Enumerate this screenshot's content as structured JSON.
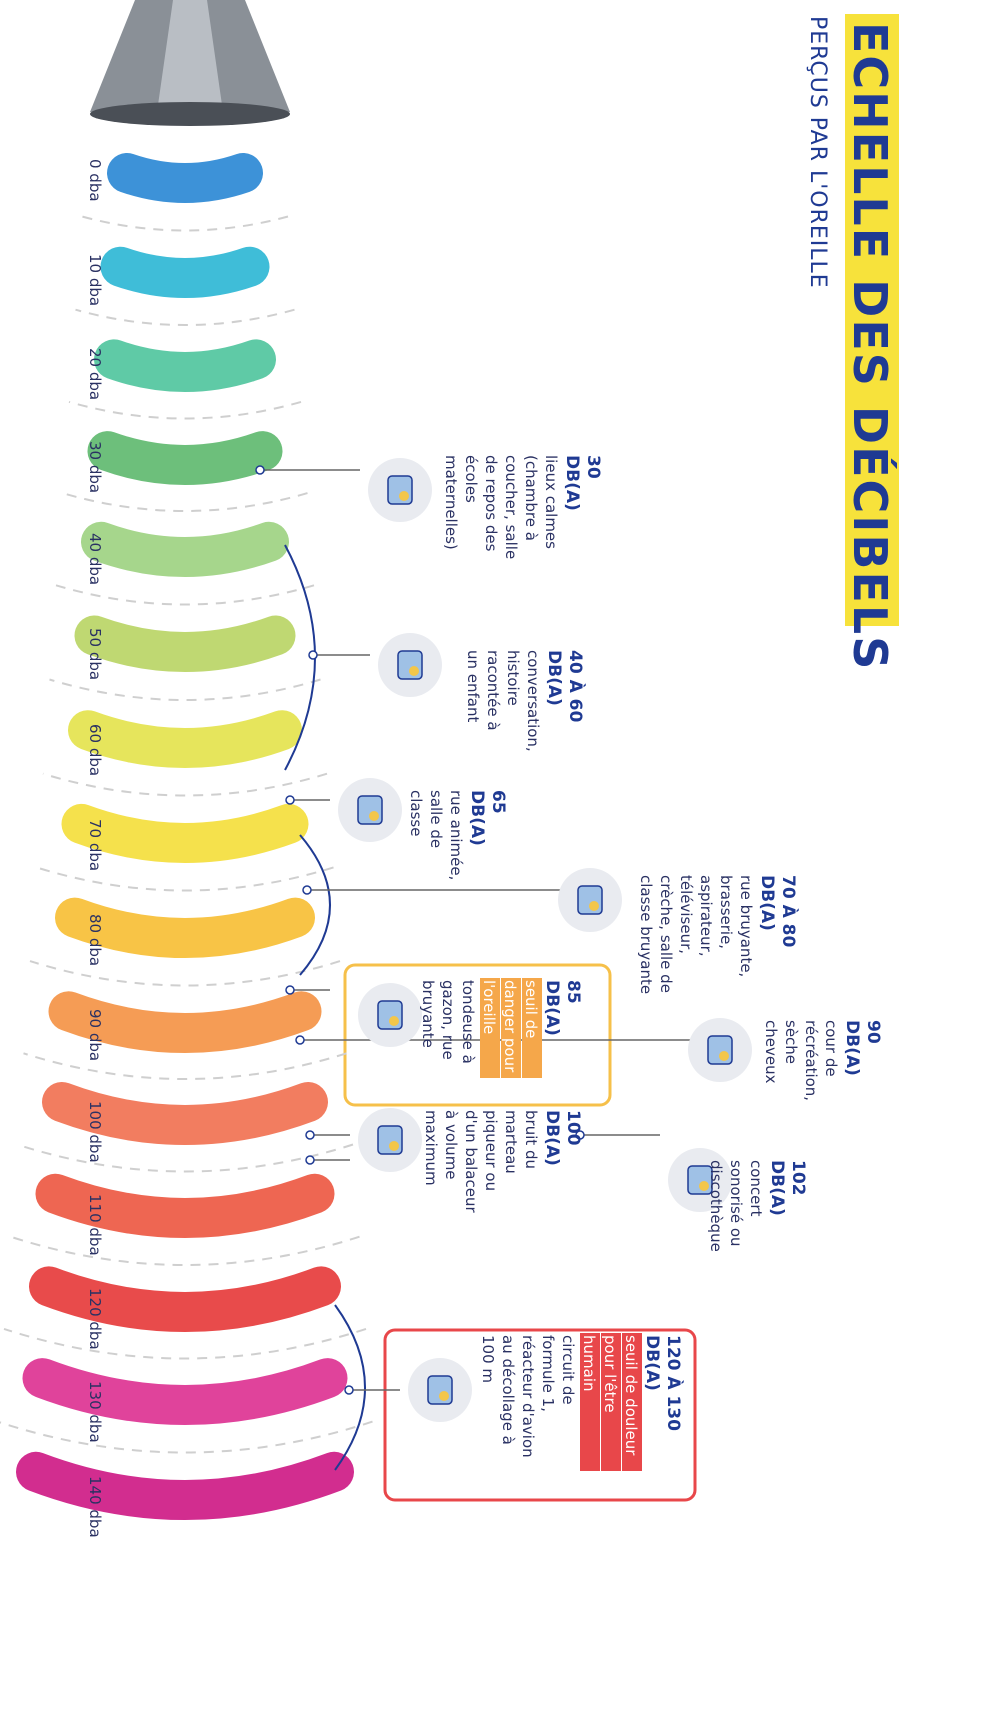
{
  "header": {
    "title": "ECHELLE DES DÉCIBELS",
    "subtitle": "PERÇUS PAR L'OREILLE"
  },
  "scale": [
    {
      "label": "0 dba",
      "color": "#3d92d8"
    },
    {
      "label": "10 dba",
      "color": "#3fbdd8"
    },
    {
      "label": "20 dba",
      "color": "#5fcaa6"
    },
    {
      "label": "30 dba",
      "color": "#6dbf7b"
    },
    {
      "label": "40 dba",
      "color": "#a6d68c"
    },
    {
      "label": "50 dba",
      "color": "#bfd872"
    },
    {
      "label": "60 dba",
      "color": "#e6e55c"
    },
    {
      "label": "70 dba",
      "color": "#f5e14c"
    },
    {
      "label": "80 dba",
      "color": "#f8c446"
    },
    {
      "label": "90 dba",
      "color": "#f59c55"
    },
    {
      "label": "100 dba",
      "color": "#f27d60"
    },
    {
      "label": "110 dba",
      "color": "#ee6652"
    },
    {
      "label": "120 dba",
      "color": "#e84b4b"
    },
    {
      "label": "130 dba",
      "color": "#e0439b"
    },
    {
      "label": "140 dba",
      "color": "#d22d8f"
    }
  ],
  "annotations": [
    {
      "heading": [
        "30",
        "DB(A)"
      ],
      "highlight": [],
      "lines": [
        "lieux calmes",
        "(chambre à",
        "coucher, salle",
        "de repos des",
        "écoles",
        "maternelles)"
      ]
    },
    {
      "heading": [
        "40 À 60",
        "DB(A)"
      ],
      "highlight": [],
      "lines": [
        "conversation,",
        "histoire",
        "racontée à",
        "un enfant"
      ]
    },
    {
      "heading": [
        "65",
        "DB(A)"
      ],
      "highlight": [],
      "lines": [
        "rue animée,",
        "salle de",
        "classe"
      ]
    },
    {
      "heading": [
        "70 À 80",
        "DB(A)"
      ],
      "highlight": [],
      "lines": [
        "rue bruyante,",
        "brasserie,",
        "aspirateur,",
        "téléviseur,",
        "crèche, salle de",
        "classe bruyante"
      ]
    },
    {
      "heading": [
        "85",
        "DB(A)"
      ],
      "highlight": [
        "seuil de",
        "danger pour",
        "l'oreille"
      ],
      "lines": [
        "tondeuse à",
        "gazon, rue",
        "bruyante"
      ]
    },
    {
      "heading": [
        "90",
        "DB(A)"
      ],
      "highlight": [],
      "lines": [
        "cour de",
        "récréation,",
        "sèche",
        "cheveux"
      ]
    },
    {
      "heading": [
        "100",
        "DB(A)"
      ],
      "highlight": [],
      "lines": [
        "bruit du",
        "marteau",
        "piqueur ou",
        "d'un balaceur",
        "à volume",
        "maximum"
      ]
    },
    {
      "heading": [
        "102",
        "DB(A)"
      ],
      "highlight": [],
      "lines": [
        "concert",
        "sonorisé ou",
        "discothèque"
      ]
    },
    {
      "heading": [
        "120 À 130",
        "DB(A)"
      ],
      "highlight": [
        "seuil de douleur",
        "pour l'être",
        "humain"
      ],
      "lines": [
        "circuit de",
        "formule 1,",
        "réacteur d'avion",
        "au décollage à",
        "100 m"
      ]
    }
  ]
}
